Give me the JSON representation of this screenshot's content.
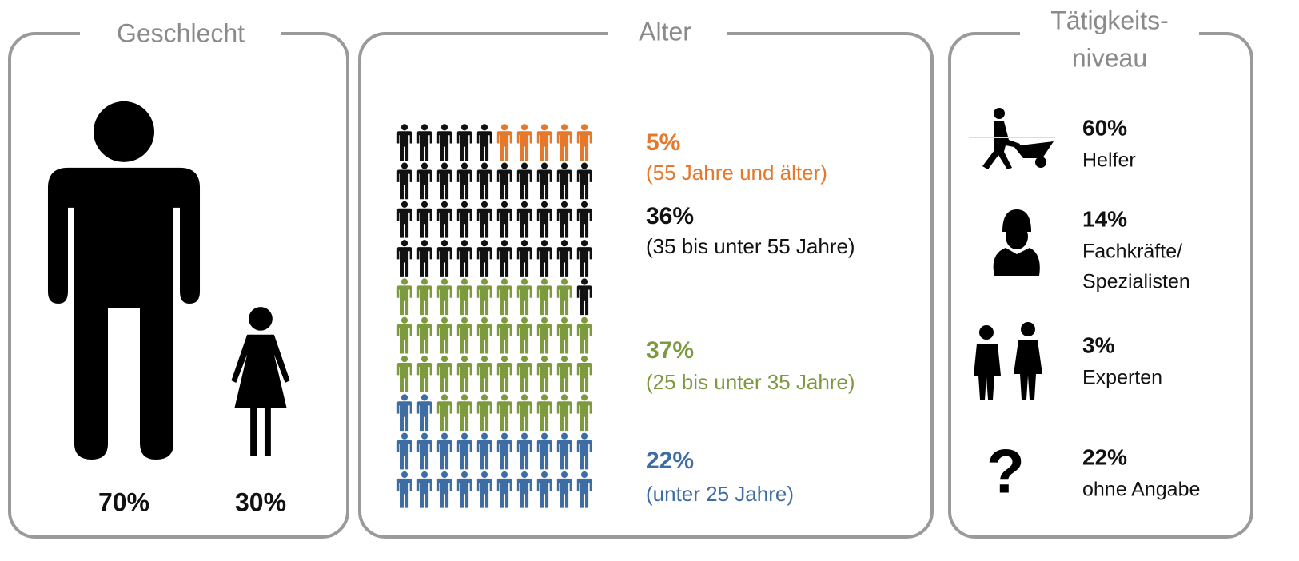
{
  "gender": {
    "title": "Geschlecht",
    "color": "#000000",
    "groups": [
      {
        "value": 70,
        "value_label": "70%"
      },
      {
        "value": 30,
        "value_label": "30%"
      }
    ]
  },
  "age": {
    "title": "Alter",
    "groups": [
      {
        "value": 5,
        "value_label": "5%",
        "label": "(55 Jahre und älter)",
        "color": "#e5782a"
      },
      {
        "value": 36,
        "value_label": "36%",
        "label": "(35 bis unter 55 Jahre)",
        "color": "#111111"
      },
      {
        "value": 37,
        "value_label": "37%",
        "label": "(25 bis unter 35 Jahre)",
        "color": "#7d9a3f"
      },
      {
        "value": 22,
        "value_label": "22%",
        "label": "(unter 25 Jahre)",
        "color": "#3e6da3"
      }
    ]
  },
  "activity": {
    "title": [
      "Tätigkeits-",
      "niveau"
    ],
    "items": [
      {
        "share": "60%",
        "label": [
          "Helfer"
        ]
      },
      {
        "share": "14%",
        "label": [
          "Fachkräfte/",
          "Spezialisten"
        ]
      },
      {
        "share": "3%",
        "label": [
          "Experten"
        ]
      },
      {
        "share": "22%",
        "label": [
          "ohne Angabe"
        ],
        "icon": "?"
      }
    ]
  }
}
